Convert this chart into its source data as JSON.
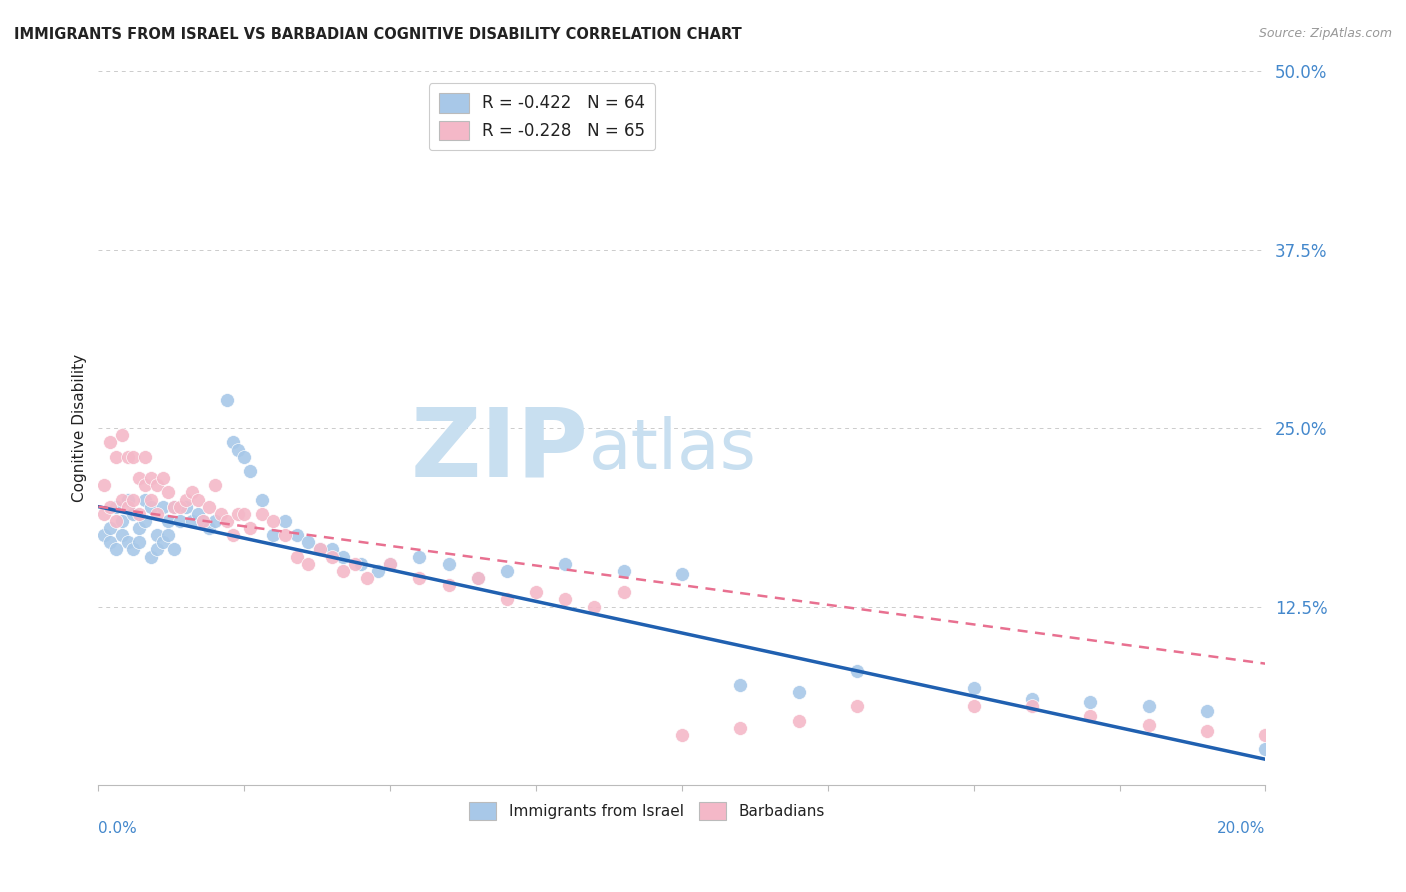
{
  "title": "IMMIGRANTS FROM ISRAEL VS BARBADIAN COGNITIVE DISABILITY CORRELATION CHART",
  "source": "Source: ZipAtlas.com",
  "ylabel": "Cognitive Disability",
  "xlim": [
    0.0,
    0.2
  ],
  "ylim": [
    0.0,
    0.5
  ],
  "yticks": [
    0.0,
    0.125,
    0.25,
    0.375,
    0.5
  ],
  "ytick_labels": [
    "",
    "12.5%",
    "25.0%",
    "37.5%",
    "50.0%"
  ],
  "legend_r1": "R = -0.422",
  "legend_n1": "N = 64",
  "legend_r2": "R = -0.228",
  "legend_n2": "N = 65",
  "color_blue": "#a8c8e8",
  "color_pink": "#f4b8c8",
  "color_blue_line": "#2060b0",
  "color_pink_line": "#e87090",
  "color_text_blue": "#4488cc",
  "color_text_dark": "#222222",
  "color_grid": "#cccccc",
  "watermark_zip": "ZIP",
  "watermark_atlas": "atlas",
  "watermark_color": "#c8dff0",
  "blue_x": [
    0.001,
    0.002,
    0.002,
    0.003,
    0.003,
    0.004,
    0.004,
    0.005,
    0.005,
    0.006,
    0.006,
    0.007,
    0.007,
    0.008,
    0.008,
    0.009,
    0.009,
    0.01,
    0.01,
    0.011,
    0.011,
    0.012,
    0.012,
    0.013,
    0.013,
    0.014,
    0.015,
    0.016,
    0.017,
    0.018,
    0.019,
    0.02,
    0.022,
    0.023,
    0.024,
    0.025,
    0.026,
    0.028,
    0.03,
    0.032,
    0.034,
    0.036,
    0.038,
    0.04,
    0.042,
    0.045,
    0.048,
    0.05,
    0.055,
    0.06,
    0.065,
    0.07,
    0.08,
    0.09,
    0.1,
    0.11,
    0.12,
    0.13,
    0.15,
    0.16,
    0.17,
    0.18,
    0.19,
    0.2
  ],
  "blue_y": [
    0.175,
    0.18,
    0.17,
    0.195,
    0.165,
    0.185,
    0.175,
    0.2,
    0.17,
    0.19,
    0.165,
    0.18,
    0.17,
    0.2,
    0.185,
    0.195,
    0.16,
    0.175,
    0.165,
    0.195,
    0.17,
    0.185,
    0.175,
    0.195,
    0.165,
    0.185,
    0.195,
    0.185,
    0.19,
    0.185,
    0.18,
    0.185,
    0.27,
    0.24,
    0.235,
    0.23,
    0.22,
    0.2,
    0.175,
    0.185,
    0.175,
    0.17,
    0.165,
    0.165,
    0.16,
    0.155,
    0.15,
    0.155,
    0.16,
    0.155,
    0.145,
    0.15,
    0.155,
    0.15,
    0.148,
    0.07,
    0.065,
    0.08,
    0.068,
    0.06,
    0.058,
    0.055,
    0.052,
    0.025
  ],
  "pink_x": [
    0.001,
    0.001,
    0.002,
    0.002,
    0.003,
    0.003,
    0.004,
    0.004,
    0.005,
    0.005,
    0.006,
    0.006,
    0.007,
    0.007,
    0.008,
    0.008,
    0.009,
    0.009,
    0.01,
    0.01,
    0.011,
    0.012,
    0.013,
    0.014,
    0.015,
    0.016,
    0.017,
    0.018,
    0.019,
    0.02,
    0.021,
    0.022,
    0.023,
    0.024,
    0.025,
    0.026,
    0.028,
    0.03,
    0.032,
    0.034,
    0.036,
    0.038,
    0.04,
    0.042,
    0.044,
    0.046,
    0.05,
    0.055,
    0.06,
    0.065,
    0.07,
    0.075,
    0.08,
    0.085,
    0.09,
    0.1,
    0.11,
    0.12,
    0.13,
    0.15,
    0.16,
    0.17,
    0.18,
    0.19,
    0.2
  ],
  "pink_y": [
    0.21,
    0.19,
    0.24,
    0.195,
    0.23,
    0.185,
    0.245,
    0.2,
    0.23,
    0.195,
    0.23,
    0.2,
    0.215,
    0.19,
    0.23,
    0.21,
    0.215,
    0.2,
    0.21,
    0.19,
    0.215,
    0.205,
    0.195,
    0.195,
    0.2,
    0.205,
    0.2,
    0.185,
    0.195,
    0.21,
    0.19,
    0.185,
    0.175,
    0.19,
    0.19,
    0.18,
    0.19,
    0.185,
    0.175,
    0.16,
    0.155,
    0.165,
    0.16,
    0.15,
    0.155,
    0.145,
    0.155,
    0.145,
    0.14,
    0.145,
    0.13,
    0.135,
    0.13,
    0.125,
    0.135,
    0.035,
    0.04,
    0.045,
    0.055,
    0.055,
    0.055,
    0.048,
    0.042,
    0.038,
    0.035
  ],
  "blue_line_x0": 0.0,
  "blue_line_x1": 0.2,
  "blue_line_y0": 0.195,
  "blue_line_y1": 0.018,
  "pink_line_x0": 0.0,
  "pink_line_x1": 0.2,
  "pink_line_y0": 0.195,
  "pink_line_y1": 0.085
}
